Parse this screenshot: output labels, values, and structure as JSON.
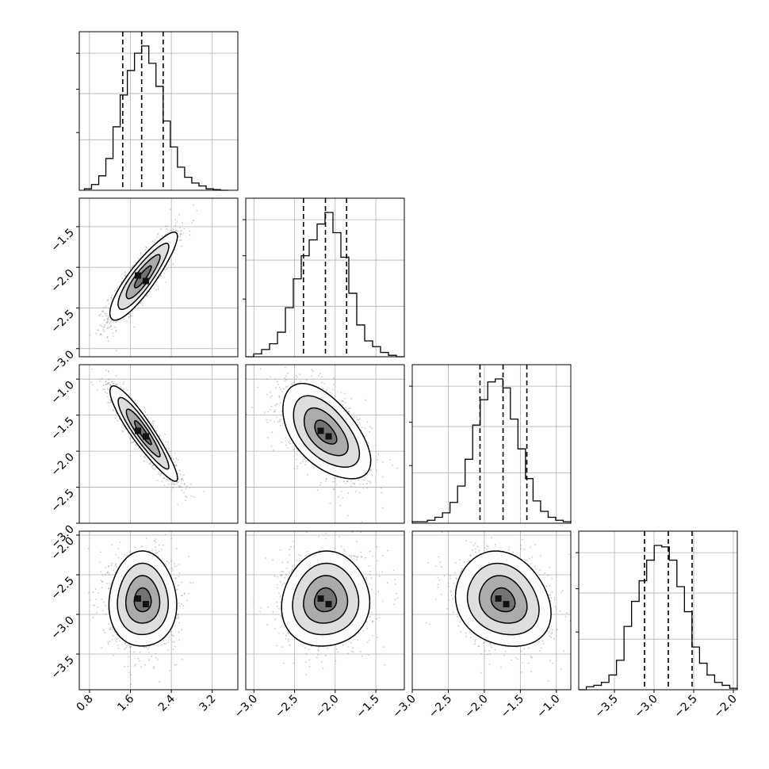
{
  "chart_data": {
    "type": "corner",
    "title": "",
    "parameters": [
      {
        "range": [
          0.6,
          3.7
        ],
        "ticks": [
          "0.8",
          "1.6",
          "2.4",
          "3.2"
        ],
        "tick_values": [
          0.8,
          1.6,
          2.4,
          3.2
        ],
        "quantiles": [
          1.45,
          1.82,
          2.24
        ]
      },
      {
        "range": [
          -3.1,
          -1.15
        ],
        "ticks": [
          "−3.0",
          "−2.5",
          "−2.0",
          "−1.5"
        ],
        "tick_values": [
          -3.0,
          -2.5,
          -2.0,
          -1.5
        ],
        "quantiles": [
          -2.39,
          -2.12,
          -1.86
        ]
      },
      {
        "range": [
          -3.0,
          -0.8
        ],
        "ticks": [
          "−3.0",
          "−2.5",
          "−2.0",
          "−1.5",
          "−1.0"
        ],
        "tick_values": [
          -3.0,
          -2.5,
          -2.0,
          -1.5,
          -1.0
        ],
        "quantiles": [
          -2.06,
          -1.74,
          -1.41
        ]
      },
      {
        "range": [
          -3.95,
          -1.95
        ],
        "ticks": [
          "−3.5",
          "−3.0",
          "−2.5",
          "−2.0"
        ],
        "tick_values": [
          -3.5,
          -3.0,
          -2.5,
          -2.0
        ],
        "quantiles": [
          -3.12,
          -2.82,
          -2.52
        ]
      }
    ],
    "row_y_ticks": [
      null,
      {
        "ticks": [
          "−1.5",
          "−2.0",
          "−2.5",
          "−3.0"
        ],
        "values": [
          -1.5,
          -2.0,
          -2.5,
          -3.0
        ]
      },
      {
        "ticks": [
          "−1.0",
          "−1.5",
          "−2.0",
          "−2.5",
          "−3.0"
        ],
        "values": [
          -1.0,
          -1.5,
          -2.0,
          -2.5,
          -3.0
        ]
      },
      {
        "ticks": [
          "−2.0",
          "−2.5",
          "−3.0",
          "−3.5"
        ],
        "values": [
          -2.0,
          -2.5,
          -3.0,
          -3.5
        ]
      }
    ],
    "histograms": [
      {
        "bins": [
          0.7,
          3.5
        ],
        "counts": [
          1,
          4,
          10,
          22,
          44,
          66,
          83,
          95,
          100,
          88,
          72,
          48,
          30,
          16,
          9,
          5,
          3,
          1,
          0.5,
          0
        ]
      },
      {
        "bins": [
          -3.1,
          -1.15
        ],
        "counts": [
          0,
          2,
          5,
          9,
          17,
          34,
          54,
          70,
          81,
          92,
          100,
          86,
          69,
          44,
          22,
          11,
          7,
          3,
          1,
          0
        ]
      },
      {
        "bins": [
          -3.0,
          -0.8
        ],
        "counts": [
          1,
          1,
          2,
          4,
          7,
          14,
          25,
          43,
          66,
          83,
          95,
          97,
          91,
          70,
          50,
          30,
          15,
          8,
          4,
          2,
          1
        ]
      },
      {
        "bins": [
          -3.95,
          -1.95
        ],
        "counts": [
          0,
          2,
          3,
          5,
          10,
          20,
          43,
          60,
          74,
          88,
          98,
          97,
          88,
          70,
          53,
          29,
          18,
          10,
          5,
          3,
          1
        ]
      }
    ],
    "pairs": [
      {
        "row": 1,
        "col": 0,
        "mean": [
          1.84,
          -2.12
        ],
        "sd": [
          0.33,
          0.27
        ],
        "rho": 0.88
      },
      {
        "row": 2,
        "col": 0,
        "mean": [
          1.84,
          -1.74
        ],
        "sd": [
          0.33,
          0.33
        ],
        "rho": -0.92
      },
      {
        "row": 2,
        "col": 1,
        "mean": [
          -2.12,
          -1.74
        ],
        "sd": [
          0.27,
          0.33
        ],
        "rho": -0.55
      },
      {
        "row": 3,
        "col": 0,
        "mean": [
          1.84,
          -2.82
        ],
        "sd": [
          0.33,
          0.3
        ],
        "rho": 0.0
      },
      {
        "row": 3,
        "col": 1,
        "mean": [
          -2.12,
          -2.82
        ],
        "sd": [
          0.27,
          0.3
        ],
        "rho": 0.05
      },
      {
        "row": 3,
        "col": 2,
        "mean": [
          -1.74,
          -2.82
        ],
        "sd": [
          0.33,
          0.3
        ],
        "rho": -0.18
      }
    ],
    "contour_levels_sigma": [
      0.5,
      1.0,
      1.5,
      2.0
    ],
    "grid": true,
    "legend": "none"
  }
}
